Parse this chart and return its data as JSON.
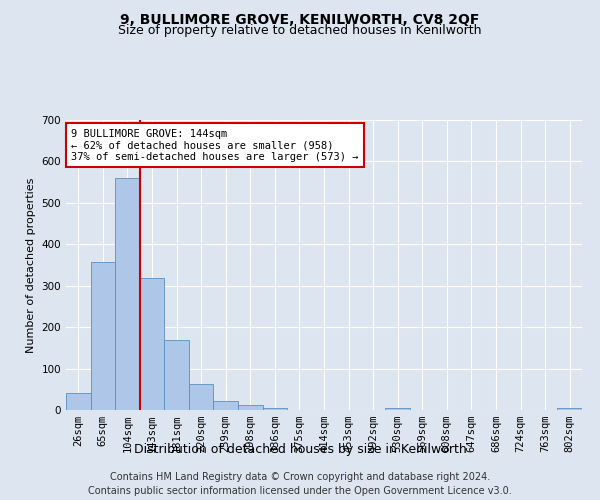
{
  "title": "9, BULLIMORE GROVE, KENILWORTH, CV8 2QF",
  "subtitle": "Size of property relative to detached houses in Kenilworth",
  "xlabel": "Distribution of detached houses by size in Kenilworth",
  "ylabel": "Number of detached properties",
  "categories": [
    "26sqm",
    "65sqm",
    "104sqm",
    "143sqm",
    "181sqm",
    "220sqm",
    "259sqm",
    "298sqm",
    "336sqm",
    "375sqm",
    "414sqm",
    "453sqm",
    "492sqm",
    "530sqm",
    "569sqm",
    "608sqm",
    "647sqm",
    "686sqm",
    "724sqm",
    "763sqm",
    "802sqm"
  ],
  "values": [
    40,
    357,
    560,
    318,
    170,
    62,
    22,
    11,
    6,
    1,
    0,
    0,
    0,
    5,
    0,
    0,
    0,
    0,
    0,
    0,
    5
  ],
  "bar_color": "#aec6e8",
  "bar_edge_color": "#5a8fc0",
  "vline_index": 2.5,
  "vline_color": "#cc0000",
  "annotation_text": "9 BULLIMORE GROVE: 144sqm\n← 62% of detached houses are smaller (958)\n37% of semi-detached houses are larger (573) →",
  "annotation_box_color": "#ffffff",
  "annotation_box_edge_color": "#cc0000",
  "ylim": [
    0,
    700
  ],
  "yticks": [
    0,
    100,
    200,
    300,
    400,
    500,
    600,
    700
  ],
  "footer_line1": "Contains HM Land Registry data © Crown copyright and database right 2024.",
  "footer_line2": "Contains public sector information licensed under the Open Government Licence v3.0.",
  "background_color": "#dde5f0",
  "plot_bg_color": "#dde5f0",
  "title_fontsize": 10,
  "subtitle_fontsize": 9,
  "xlabel_fontsize": 9,
  "ylabel_fontsize": 8,
  "tick_fontsize": 7.5,
  "footer_fontsize": 7
}
